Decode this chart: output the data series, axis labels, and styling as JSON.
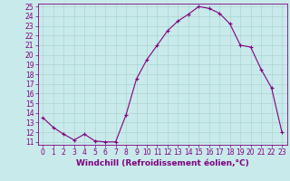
{
  "x": [
    0,
    1,
    2,
    3,
    4,
    5,
    6,
    7,
    8,
    9,
    10,
    11,
    12,
    13,
    14,
    15,
    16,
    17,
    18,
    19,
    20,
    21,
    22,
    23
  ],
  "y": [
    13.5,
    12.5,
    11.8,
    11.2,
    11.8,
    11.1,
    11.0,
    11.0,
    13.8,
    17.5,
    19.5,
    21.0,
    22.5,
    23.5,
    24.2,
    25.0,
    24.8,
    24.3,
    23.2,
    21.0,
    20.8,
    18.5,
    16.6,
    12.0
  ],
  "line_color": "#800080",
  "marker": "+",
  "marker_size": 3,
  "bg_color": "#c8eaea",
  "grid_color": "#aed4d4",
  "xlabel": "Windchill (Refroidissement éolien,°C)",
  "ylim_min": 11,
  "ylim_max": 25,
  "xlim_min": 0,
  "xlim_max": 23,
  "yticks": [
    11,
    12,
    13,
    14,
    15,
    16,
    17,
    18,
    19,
    20,
    21,
    22,
    23,
    24,
    25
  ],
  "xticks": [
    0,
    1,
    2,
    3,
    4,
    5,
    6,
    7,
    8,
    9,
    10,
    11,
    12,
    13,
    14,
    15,
    16,
    17,
    18,
    19,
    20,
    21,
    22,
    23
  ],
  "axis_color": "#800080",
  "tick_label_color": "#800080",
  "xlabel_color": "#800080",
  "xlabel_fontsize": 6.5,
  "tick_fontsize": 5.5,
  "linewidth": 0.8,
  "markeredgewidth": 0.8
}
